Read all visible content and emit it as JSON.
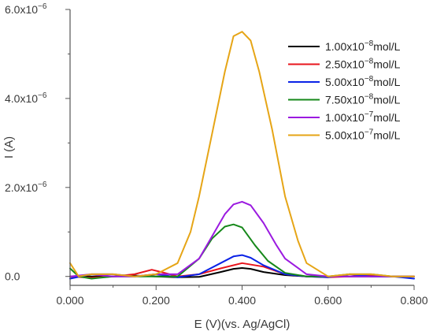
{
  "chart_data": {
    "type": "line",
    "xlabel": "E (V)(vs. Ag/AgCl)",
    "ylabel": "I (A)",
    "xlim": [
      0.0,
      0.8
    ],
    "ylim": [
      -2e-07,
      6e-06
    ],
    "x_ticks": [
      "0.000",
      "0.200",
      "0.400",
      "0.600",
      "0.800"
    ],
    "y_ticks": [
      {
        "value": 0.0,
        "mantissa": "0.0",
        "exp": ""
      },
      {
        "value": 2e-06,
        "mantissa": "2.0x10",
        "exp": "−6"
      },
      {
        "value": 4e-06,
        "mantissa": "4.0x10",
        "exp": "−6"
      },
      {
        "value": 6e-06,
        "mantissa": "6.0x10",
        "exp": "−6"
      }
    ],
    "legend_position": "top-right",
    "grid": false,
    "series": [
      {
        "name_mantissa": "1.00x10",
        "name_exp": "−8",
        "name_unit": "mol/L",
        "color": "#000000",
        "x": [
          0.0,
          0.05,
          0.1,
          0.15,
          0.2,
          0.25,
          0.3,
          0.35,
          0.38,
          0.4,
          0.42,
          0.45,
          0.5,
          0.55,
          0.6,
          0.65,
          0.7,
          0.75,
          0.8
        ],
        "y": [
          0.0,
          0.0,
          0.0,
          2e-08,
          0.0,
          -2e-08,
          -1e-08,
          1e-07,
          1.7e-07,
          1.9e-07,
          1.7e-07,
          1e-07,
          3e-08,
          0.0,
          0.0,
          0.0,
          0.0,
          0.0,
          0.0
        ]
      },
      {
        "name_mantissa": "2.50x10",
        "name_exp": "−8",
        "name_unit": "mol/L",
        "color": "#e8141c",
        "x": [
          0.0,
          0.05,
          0.1,
          0.15,
          0.19,
          0.22,
          0.25,
          0.3,
          0.35,
          0.4,
          0.45,
          0.5,
          0.55,
          0.6,
          0.65,
          0.7,
          0.75,
          0.8
        ],
        "y": [
          0.0,
          -3e-08,
          0.0,
          5e-08,
          1.5e-07,
          8e-08,
          0.0,
          5e-08,
          1.8e-07,
          3e-07,
          2.2e-07,
          5e-08,
          0.0,
          -2e-08,
          0.0,
          3e-08,
          0.0,
          0.0
        ]
      },
      {
        "name_mantissa": "5.00x10",
        "name_exp": "−8",
        "name_unit": "mol/L",
        "color": "#0a22e6",
        "x": [
          0.0,
          0.05,
          0.1,
          0.15,
          0.2,
          0.25,
          0.3,
          0.35,
          0.38,
          0.4,
          0.42,
          0.45,
          0.5,
          0.55,
          0.6,
          0.65,
          0.7,
          0.75,
          0.8
        ],
        "y": [
          -5e-08,
          5e-08,
          5e-08,
          0.0,
          5e-08,
          -2e-08,
          5e-08,
          3e-07,
          4.5e-07,
          4.8e-07,
          4.2e-07,
          2.5e-07,
          5e-08,
          0.0,
          -2e-08,
          5e-08,
          0.0,
          0.0,
          -5e-08
        ]
      },
      {
        "name_mantissa": "7.50x10",
        "name_exp": "−8",
        "name_unit": "mol/L",
        "color": "#16881a",
        "x": [
          0.0,
          0.02,
          0.05,
          0.1,
          0.15,
          0.2,
          0.25,
          0.3,
          0.33,
          0.36,
          0.38,
          0.4,
          0.43,
          0.46,
          0.5,
          0.55,
          0.6,
          0.65,
          0.7,
          0.75,
          0.8
        ],
        "y": [
          1.8e-07,
          0.0,
          -5e-08,
          0.0,
          0.0,
          0.0,
          0.0,
          4e-07,
          8.5e-07,
          1.12e-06,
          1.17e-06,
          1.1e-06,
          7e-07,
          3.5e-07,
          8e-08,
          0.0,
          0.0,
          5e-08,
          5e-08,
          0.0,
          0.0
        ]
      },
      {
        "name_mantissa": "1.00x10",
        "name_exp": "−7",
        "name_unit": "mol/L",
        "color": "#9b1ae0",
        "x": [
          0.0,
          0.05,
          0.1,
          0.15,
          0.2,
          0.25,
          0.3,
          0.33,
          0.36,
          0.38,
          0.4,
          0.42,
          0.45,
          0.48,
          0.5,
          0.55,
          0.6,
          0.65,
          0.7,
          0.75,
          0.8
        ],
        "y": [
          0.0,
          5e-08,
          0.0,
          0.0,
          5e-08,
          5e-08,
          4e-07,
          9e-07,
          1.4e-06,
          1.62e-06,
          1.68e-06,
          1.6e-06,
          1.2e-06,
          7e-07,
          4e-07,
          5e-08,
          0.0,
          0.0,
          0.0,
          0.0,
          0.0
        ]
      },
      {
        "name_mantissa": "5.00x10",
        "name_exp": "−7",
        "name_unit": "mol/L",
        "color": "#e6a516",
        "x": [
          0.0,
          0.02,
          0.05,
          0.1,
          0.15,
          0.2,
          0.25,
          0.28,
          0.3,
          0.33,
          0.36,
          0.38,
          0.4,
          0.42,
          0.44,
          0.47,
          0.5,
          0.53,
          0.55,
          0.6,
          0.65,
          0.7,
          0.75,
          0.8
        ],
        "y": [
          3e-07,
          0.0,
          5e-08,
          5e-08,
          0.0,
          5e-08,
          3e-07,
          1e-06,
          1.8e-06,
          3.2e-06,
          4.6e-06,
          5.4e-06,
          5.5e-06,
          5.3e-06,
          4.6e-06,
          3.3e-06,
          1.8e-06,
          8e-07,
          3e-07,
          0.0,
          5e-08,
          5e-08,
          0.0,
          0.0
        ]
      }
    ]
  }
}
